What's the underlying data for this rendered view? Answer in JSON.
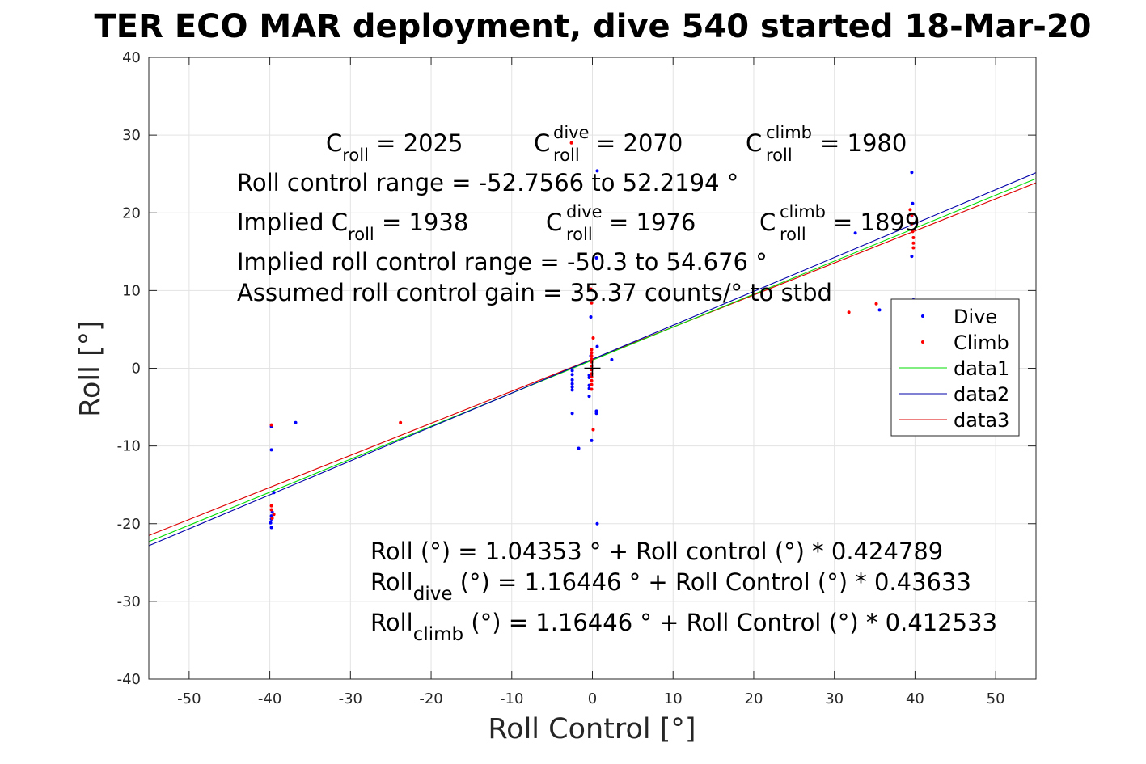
{
  "chart_data": {
    "type": "scatter",
    "title": "TER ECO MAR deployment, dive 540 started 18-Mar-20",
    "xlabel": "Roll Control [°]",
    "ylabel": "Roll [°]",
    "xlim": [
      -55,
      55
    ],
    "ylim": [
      -40,
      40
    ],
    "xticks": [
      -50,
      -40,
      -30,
      -20,
      -10,
      0,
      10,
      20,
      30,
      40,
      50
    ],
    "yticks": [
      -40,
      -30,
      -20,
      -10,
      0,
      10,
      20,
      30,
      40
    ],
    "grid": true,
    "legend_position": "right",
    "colors": {
      "dive": "#0000ff",
      "climb": "#ff0000",
      "data1": "#00dd00",
      "data2": "#0000aa",
      "data3": "#dd0000",
      "marker": "#000000"
    },
    "legend": [
      "Dive",
      "Climb",
      "data1",
      "data2",
      "data3"
    ],
    "series": [
      {
        "name": "Dive",
        "kind": "points",
        "points": [
          [
            -39.8,
            -7.5
          ],
          [
            -39.8,
            -10.5
          ],
          [
            -39.5,
            -16
          ],
          [
            -39.7,
            -18.5
          ],
          [
            -39.8,
            -19
          ],
          [
            -39.8,
            -19.4
          ],
          [
            -39.9,
            -19.9
          ],
          [
            -39.8,
            -20.5
          ],
          [
            -36.8,
            -7
          ],
          [
            -2.5,
            -0.3
          ],
          [
            -2.5,
            -0.8
          ],
          [
            -2.5,
            -1.5
          ],
          [
            -2.5,
            -2
          ],
          [
            -2.5,
            -2.4
          ],
          [
            -2.5,
            -2.8
          ],
          [
            -2.5,
            -5.8
          ],
          [
            -1.7,
            -10.3
          ],
          [
            -0.4,
            -0.9
          ],
          [
            -0.4,
            -1.2
          ],
          [
            -0.4,
            -2.2
          ],
          [
            -0.4,
            -2.6
          ],
          [
            -0.4,
            -3.6
          ],
          [
            -0.2,
            6.6
          ],
          [
            -0.2,
            1.6
          ],
          [
            -0.1,
            -9.3
          ],
          [
            0.5,
            14.2
          ],
          [
            0.6,
            25.4
          ],
          [
            0.6,
            2.8
          ],
          [
            0.5,
            -5.5
          ],
          [
            0.5,
            -5.8
          ],
          [
            0.6,
            -20
          ],
          [
            2.4,
            1.1
          ],
          [
            32.6,
            17.4
          ],
          [
            35.6,
            7.5
          ],
          [
            39.6,
            25.2
          ],
          [
            39.7,
            21.2
          ],
          [
            39.6,
            19.6
          ],
          [
            39.6,
            14.4
          ],
          [
            39.8,
            8.8
          ]
        ]
      },
      {
        "name": "Climb",
        "kind": "points",
        "points": [
          [
            -39.8,
            -7.3
          ],
          [
            -39.8,
            -17.7
          ],
          [
            -39.8,
            -18.2
          ],
          [
            -39.5,
            -18.8
          ],
          [
            -39.7,
            -19.3
          ],
          [
            -23.8,
            -7
          ],
          [
            -2.6,
            29
          ],
          [
            -0.2,
            10.2
          ],
          [
            -0.1,
            8.4
          ],
          [
            0.1,
            3.9
          ],
          [
            -0.1,
            2.4
          ],
          [
            -0.1,
            2
          ],
          [
            -0.1,
            1.6
          ],
          [
            -0.1,
            1.2
          ],
          [
            -0.1,
            0.8
          ],
          [
            -0.1,
            0.3
          ],
          [
            -0.1,
            -0.2
          ],
          [
            -0.1,
            -0.7
          ],
          [
            -0.1,
            -1.1
          ],
          [
            -0.1,
            -1.6
          ],
          [
            -0.1,
            -2.1
          ],
          [
            -0.1,
            -2.7
          ],
          [
            0.1,
            -7.9
          ],
          [
            31.8,
            7.2
          ],
          [
            35.2,
            8.3
          ],
          [
            39.4,
            20.4
          ],
          [
            39.6,
            19.7
          ],
          [
            39.6,
            18.6
          ],
          [
            39.7,
            17.6
          ],
          [
            39.8,
            16.8
          ],
          [
            39.8,
            16.1
          ],
          [
            39.8,
            15.5
          ]
        ]
      },
      {
        "name": "data1",
        "kind": "line",
        "x": [
          -55,
          55
        ],
        "y": [
          -22.32,
          24.4
        ]
      },
      {
        "name": "data2",
        "kind": "line",
        "x": [
          -55,
          55
        ],
        "y": [
          -22.83,
          25.16
        ]
      },
      {
        "name": "data3",
        "kind": "line",
        "x": [
          -55,
          55
        ],
        "y": [
          -21.52,
          23.86
        ]
      }
    ],
    "center_marker": [
      0,
      0
    ],
    "annotations": {
      "line1": {
        "c1_main": "C",
        "c1_sub": "roll",
        "c1_val": " = 2025",
        "c2_main": "C",
        "c2_sup": "dive",
        "c2_sub": "roll",
        "c2_val": " = 2070",
        "c3_main": "C",
        "c3_sup": "climb",
        "c3_sub": "roll",
        "c3_val": " = 1980"
      },
      "line2": "Roll control range = -52.7566 to 52.2194 °",
      "line3": {
        "a_main": "Implied C",
        "a_sub": "roll",
        "a_val": " = 1938",
        "b_main": "C",
        "b_sup": "dive",
        "b_sub": "roll",
        "b_val": " = 1976",
        "c_main": "C",
        "c_sup": "climb",
        "c_sub": "roll",
        "c_val": " = 1899"
      },
      "line4": "Implied roll control range = -50.3 to 54.676 °",
      "line5": "Assumed roll control gain = 35.37 counts/° to stbd",
      "fit1": "Roll (°) = 1.04353 ° + Roll control (°) * 0.424789",
      "fit2": {
        "main": "Roll",
        "sub": "dive",
        "rest": " (°) = 1.16446 ° + Roll Control (°) * 0.43633"
      },
      "fit3": {
        "main": "Roll",
        "sub": "climb",
        "rest": " (°) = 1.16446 ° + Roll Control (°) * 0.412533"
      }
    }
  }
}
